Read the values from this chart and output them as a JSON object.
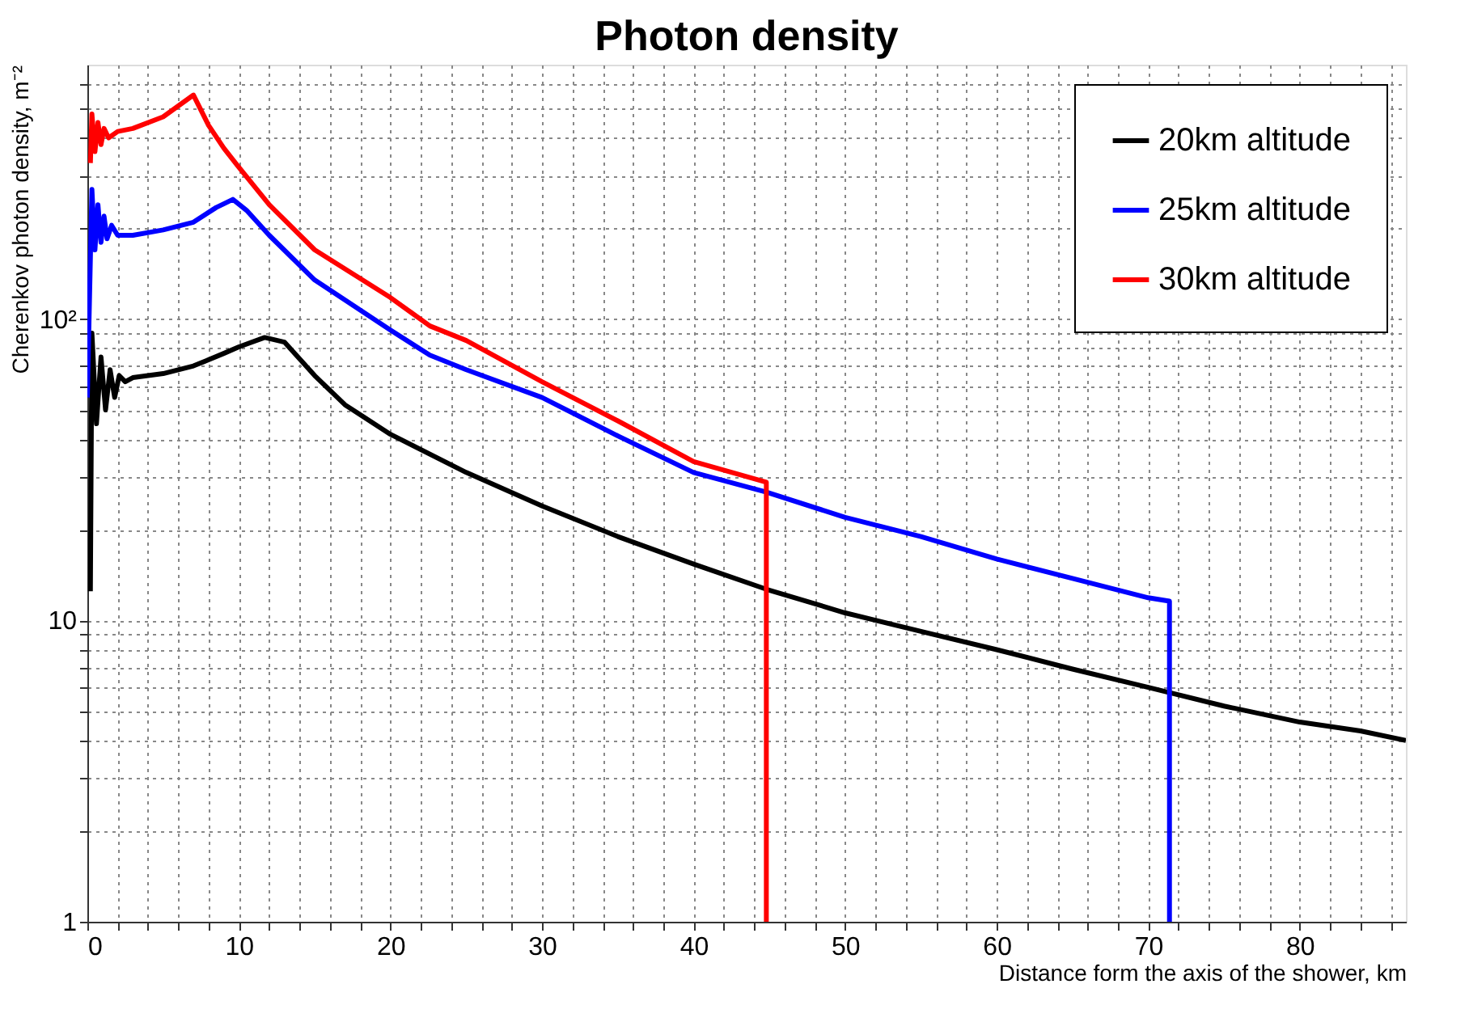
{
  "chart_data": {
    "type": "line",
    "title": "Photon density",
    "xlabel": "Distance form the axis of the shower, km",
    "ylabel": "Cherenkov photon density, m⁻²",
    "log": "y",
    "grid": true,
    "legend": "top right",
    "marker": "none",
    "line_style": "solid",
    "xlim": [
      0,
      87
    ],
    "ylim": [
      1,
      700
    ],
    "xticks": [
      0,
      {
        "value": 2,
        "label": null
      },
      {
        "value": 4,
        "label": null
      },
      {
        "value": 6,
        "label": null
      },
      {
        "value": 8,
        "label": null
      },
      10,
      {
        "value": 12,
        "label": null
      },
      {
        "value": 14,
        "label": null
      },
      {
        "value": 16,
        "label": null
      },
      {
        "value": 18,
        "label": null
      },
      20,
      {
        "value": 22,
        "label": null
      },
      {
        "value": 24,
        "label": null
      },
      {
        "value": 26,
        "label": null
      },
      {
        "value": 28,
        "label": null
      },
      30,
      {
        "value": 32,
        "label": null
      },
      {
        "value": 34,
        "label": null
      },
      {
        "value": 36,
        "label": null
      },
      {
        "value": 38,
        "label": null
      },
      40,
      {
        "value": 42,
        "label": null
      },
      {
        "value": 44,
        "label": null
      },
      {
        "value": 46,
        "label": null
      },
      {
        "value": 48,
        "label": null
      },
      50,
      {
        "value": 52,
        "label": null
      },
      {
        "value": 54,
        "label": null
      },
      {
        "value": 56,
        "label": null
      },
      {
        "value": 58,
        "label": null
      },
      60,
      {
        "value": 62,
        "label": null
      },
      {
        "value": 64,
        "label": null
      },
      {
        "value": 66,
        "label": null
      },
      {
        "value": 68,
        "label": null
      },
      70,
      {
        "value": 72,
        "label": null
      },
      {
        "value": 74,
        "label": null
      },
      {
        "value": 76,
        "label": null
      },
      {
        "value": 78,
        "label": null
      },
      80,
      {
        "value": 82,
        "label": null
      },
      {
        "value": 84,
        "label": null
      },
      {
        "value": 86,
        "label": null
      }
    ],
    "yticks": [
      1,
      {
        "value": 2,
        "label": null
      },
      {
        "value": 3,
        "label": null
      },
      {
        "value": 4,
        "label": null
      },
      {
        "value": 5,
        "label": null
      },
      {
        "value": 6,
        "label": null
      },
      {
        "value": 7,
        "label": null
      },
      {
        "value": 8,
        "label": null
      },
      {
        "value": 9,
        "label": null
      },
      10,
      {
        "value": 20,
        "label": null
      },
      {
        "value": 30,
        "label": null
      },
      {
        "value": 40,
        "label": null
      },
      {
        "value": 50,
        "label": null
      },
      {
        "value": 60,
        "label": null
      },
      {
        "value": 70,
        "label": null
      },
      {
        "value": 80,
        "label": null
      },
      {
        "value": 90,
        "label": null
      },
      {
        "value": 100,
        "label": "10²"
      },
      {
        "value": 200,
        "label": null
      },
      {
        "value": 300,
        "label": null
      },
      {
        "value": 400,
        "label": null
      },
      {
        "value": 500,
        "label": null
      },
      {
        "value": 600,
        "label": null
      }
    ],
    "series": [
      {
        "name": "20km altitude",
        "color": "#000000",
        "x": [
          0.2,
          0.3,
          0.6,
          0.9,
          1.2,
          1.5,
          1.8,
          2.1,
          2.5,
          3,
          5,
          7,
          9,
          10,
          11.7,
          13,
          15,
          17,
          20,
          25,
          30,
          35,
          40,
          44.8,
          50,
          55,
          60,
          65,
          70,
          75,
          80,
          84,
          87
        ],
        "values": [
          12.5,
          90,
          45,
          75,
          50,
          68,
          55,
          65,
          62,
          64,
          66,
          70,
          77,
          81,
          87,
          84,
          65,
          52,
          41.5,
          31,
          24,
          19,
          15.4,
          12.7,
          10.6,
          9.2,
          8.0,
          6.9,
          6.0,
          5.2,
          4.6,
          4.3,
          4.0
        ]
      },
      {
        "name": "25km altitude",
        "color": "#0000ff",
        "x": [
          0,
          0.2,
          0.3,
          0.5,
          0.7,
          0.9,
          1.1,
          1.3,
          1.6,
          2,
          3,
          5,
          7,
          8.5,
          9.6,
          10.5,
          12,
          15,
          20,
          22.6,
          25,
          30,
          35,
          40,
          44.8,
          50,
          55,
          60,
          65,
          70,
          71.4,
          71.4
        ],
        "values": [
          55,
          160,
          270,
          170,
          240,
          180,
          220,
          185,
          205,
          190,
          190,
          198,
          210,
          235,
          250,
          230,
          190,
          135,
          92,
          76,
          68,
          55,
          41,
          31,
          26.7,
          22,
          19,
          16,
          13.8,
          11.9,
          11.6,
          1
        ]
      },
      {
        "name": "30km altitude",
        "color": "#ff0000",
        "x": [
          0.2,
          0.3,
          0.5,
          0.7,
          0.9,
          1.1,
          1.4,
          2,
          3,
          5,
          7,
          8,
          9,
          9.9,
          12,
          15,
          20,
          22.6,
          25,
          30,
          35,
          40,
          44.8,
          44.8
        ],
        "values": [
          330,
          480,
          360,
          450,
          380,
          430,
          400,
          420,
          430,
          470,
          555,
          440,
          370,
          324,
          240,
          170,
          118,
          95,
          85,
          62,
          46,
          33.7,
          28.8,
          1
        ]
      }
    ]
  }
}
